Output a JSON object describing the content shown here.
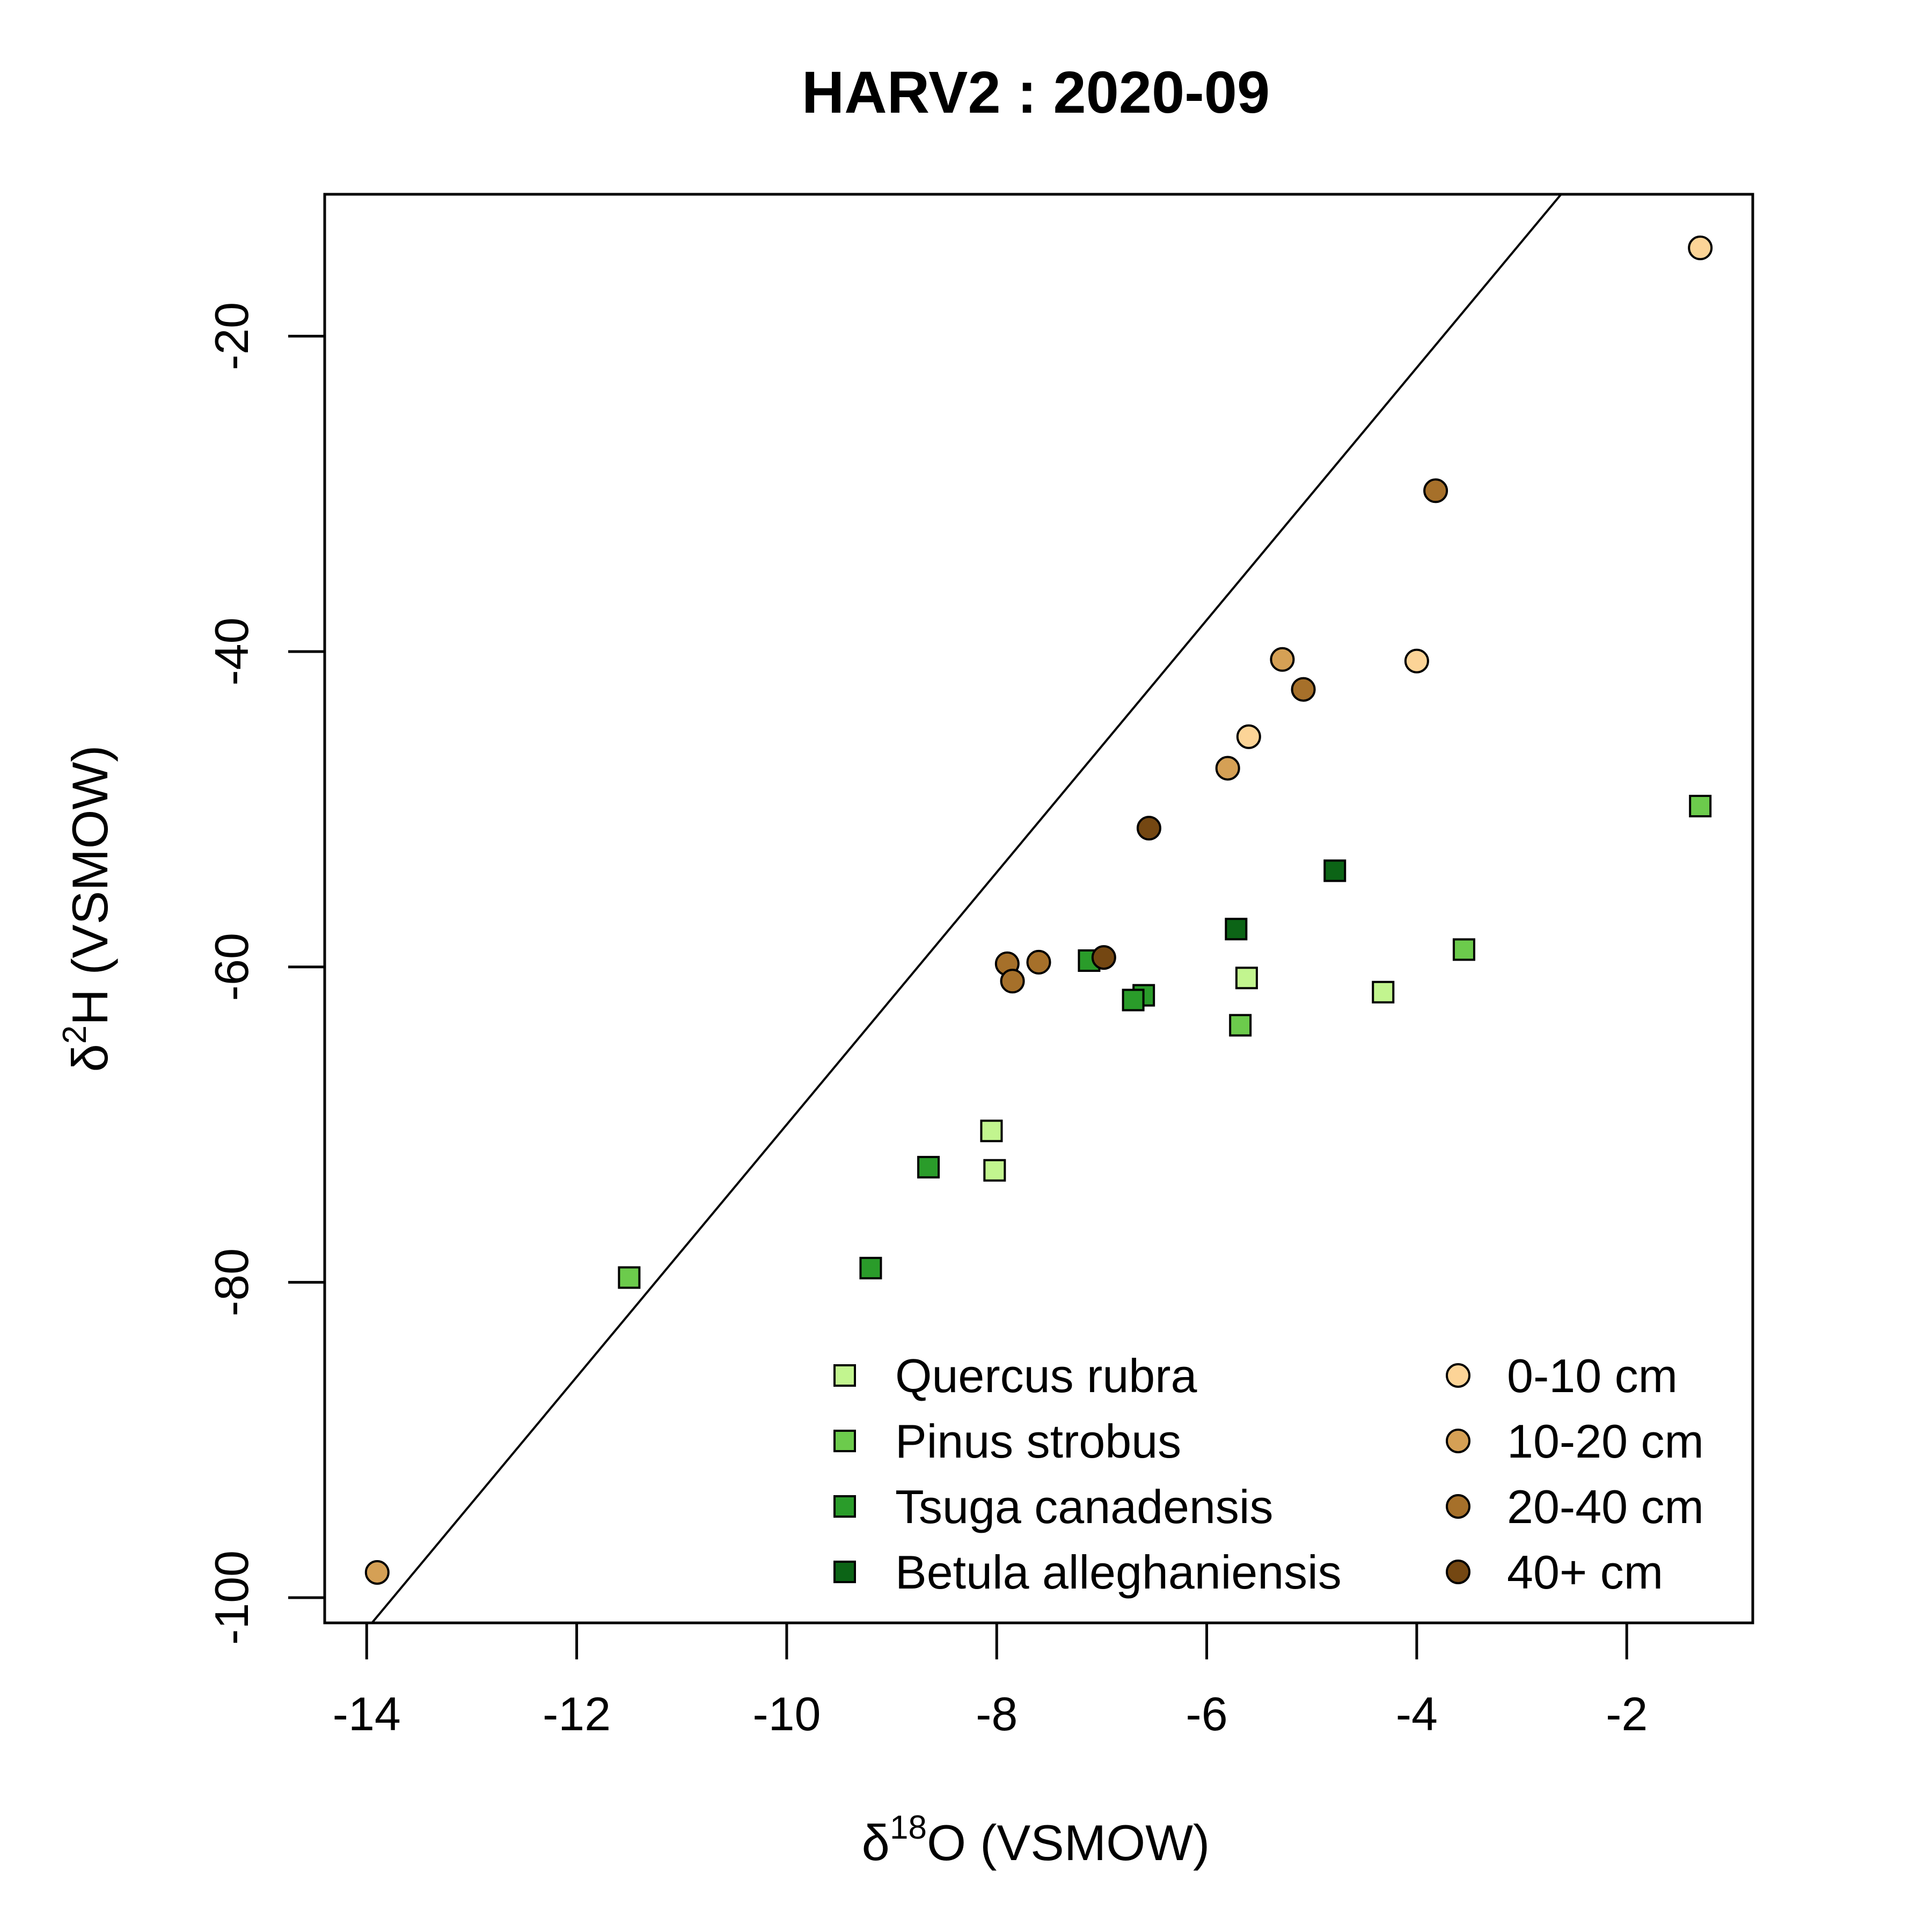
{
  "chart_data": {
    "type": "scatter",
    "title": "HARV2 : 2020-09",
    "xlabel": {
      "symbol": "δ",
      "sup": "18",
      "rest": "O (VSMOW)"
    },
    "ylabel": {
      "symbol": "δ",
      "sup": "2",
      "rest": "H (VSMOW)"
    },
    "xlim": [
      -14.4,
      -0.8
    ],
    "ylim": [
      -101.6,
      -11
    ],
    "xticks": [
      -14,
      -12,
      -10,
      -8,
      -6,
      -4,
      -2
    ],
    "yticks": [
      -100,
      -80,
      -60,
      -40,
      -20
    ],
    "reference_line": {
      "slope": 8,
      "intercept": 10
    },
    "series": [
      {
        "name": "Quercus rubra",
        "marker": "square",
        "color": "#c2f58f",
        "points": [
          [
            -8.05,
            -70.4
          ],
          [
            -8.02,
            -72.9
          ],
          [
            -5.62,
            -60.7
          ],
          [
            -4.32,
            -61.6
          ]
        ]
      },
      {
        "name": "Pinus strobus",
        "marker": "square",
        "color": "#6ccb4c",
        "points": [
          [
            -11.5,
            -79.7
          ],
          [
            -5.68,
            -63.7
          ],
          [
            -3.55,
            -58.9
          ],
          [
            -1.3,
            -49.8
          ]
        ]
      },
      {
        "name": "Tsuga canadensis",
        "marker": "square",
        "color": "#2a9c2a",
        "points": [
          [
            -9.2,
            -79.1
          ],
          [
            -8.65,
            -72.7
          ],
          [
            -7.12,
            -59.6
          ],
          [
            -6.6,
            -61.8
          ],
          [
            -6.7,
            -62.1
          ]
        ]
      },
      {
        "name": "Betula alleghaniensis",
        "marker": "square",
        "color": "#0c6416",
        "points": [
          [
            -5.72,
            -57.6
          ],
          [
            -4.78,
            -53.9
          ]
        ]
      },
      {
        "name": "0-10 cm",
        "marker": "circle",
        "color": "#fcd497",
        "points": [
          [
            -1.3,
            -14.4
          ],
          [
            -4.0,
            -40.6
          ],
          [
            -5.6,
            -45.4
          ]
        ]
      },
      {
        "name": "10-20 cm",
        "marker": "circle",
        "color": "#d5a055",
        "points": [
          [
            -13.9,
            -98.4
          ],
          [
            -5.8,
            -47.4
          ],
          [
            -5.28,
            -40.5
          ]
        ]
      },
      {
        "name": "20-40 cm",
        "marker": "circle",
        "color": "#a6702a",
        "points": [
          [
            -3.82,
            -29.8
          ],
          [
            -5.08,
            -42.4
          ],
          [
            -7.9,
            -59.8
          ],
          [
            -7.6,
            -59.7
          ],
          [
            -7.85,
            -60.9
          ]
        ]
      },
      {
        "name": "40+ cm",
        "marker": "circle",
        "color": "#744712",
        "points": [
          [
            -6.55,
            -51.2
          ],
          [
            -6.98,
            -59.4
          ]
        ]
      }
    ],
    "legend_position": "bottom-right"
  }
}
